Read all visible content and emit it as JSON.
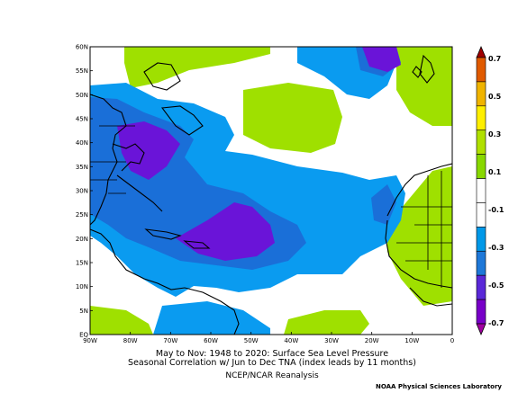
{
  "map": {
    "lat_ticks": [
      "60N",
      "55N",
      "50N",
      "45N",
      "40N",
      "35N",
      "30N",
      "25N",
      "20N",
      "15N",
      "10N",
      "5N",
      "EQ"
    ],
    "lon_ticks": [
      "90W",
      "80W",
      "70W",
      "60W",
      "50W",
      "40W",
      "30W",
      "20W",
      "10W",
      "0"
    ],
    "lat_range": [
      0,
      60
    ],
    "lon_range": [
      -90,
      0
    ]
  },
  "colorbar": {
    "labels": [
      "0.7",
      "0.5",
      "0.3",
      "0.1",
      "-0.1",
      "-0.3",
      "-0.5",
      "-0.7"
    ],
    "colors": [
      "#a00000",
      "#e05a00",
      "#f0b400",
      "#ffef00",
      "#b0e000",
      "#88d800",
      "#ffffff",
      "#ffffff",
      "#0098e8",
      "#1e78d8",
      "#5a28d8",
      "#7800c8",
      "#a000a0"
    ]
  },
  "caption": {
    "line1": "May to Nov: 1948 to 2020: Surface Sea Level Pressure",
    "line2": "Seasonal Correlation w/ Jun to Dec TNA (index leads by 11 months)",
    "credit": "NCEP/NCAR Reanalysis",
    "lab": "NOAA Physical Sciences Laboratory"
  },
  "colors": {
    "green": "#9fe000",
    "light_blue": "#0a9bf0",
    "mid_blue": "#1a6fd8",
    "purple": "#6a14d8"
  }
}
